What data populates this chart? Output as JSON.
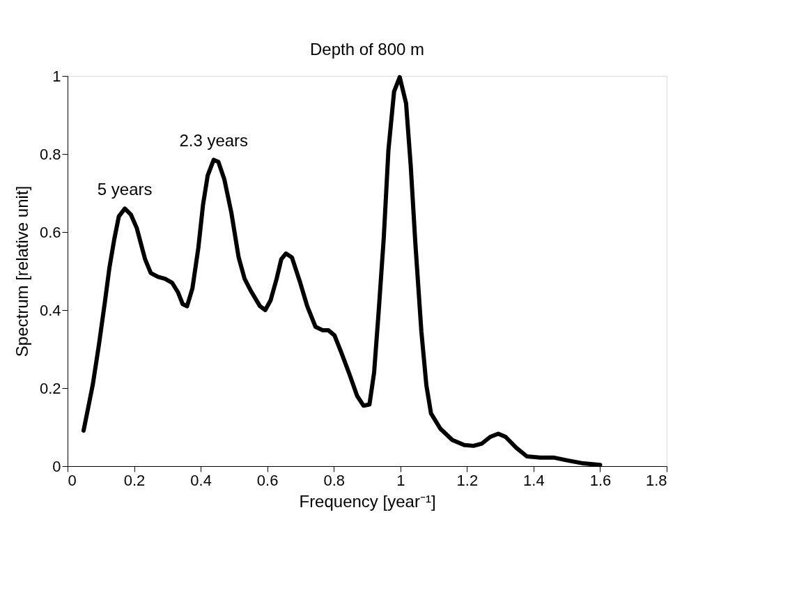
{
  "chart_data": {
    "type": "line",
    "title": "Depth of 800 m",
    "xlabel": "Frequency [year⁻¹]",
    "ylabel": "Spectrum [relative unit]",
    "xlim": [
      0,
      1.8
    ],
    "xticks": [
      0,
      0.2,
      0.4,
      0.6,
      0.8,
      1,
      1.2,
      1.4,
      1.6,
      1.8
    ],
    "ylim": [
      0,
      1
    ],
    "yticks": [
      0,
      0.2,
      0.4,
      0.6,
      0.8,
      1
    ],
    "grid": false,
    "marker": "none",
    "line_style": "solid",
    "annotations": [
      {
        "text": "5 years",
        "x": 0.172,
        "y": 0.66
      },
      {
        "text": "2.3 years",
        "x": 0.439,
        "y": 0.785
      }
    ],
    "series": [
      {
        "color": "#000000",
        "x": [
          0.048,
          0.062,
          0.076,
          0.094,
          0.112,
          0.126,
          0.14,
          0.154,
          0.172,
          0.19,
          0.208,
          0.233,
          0.25,
          0.272,
          0.293,
          0.314,
          0.332,
          0.346,
          0.359,
          0.375,
          0.393,
          0.407,
          0.421,
          0.439,
          0.453,
          0.471,
          0.492,
          0.514,
          0.532,
          0.55,
          0.578,
          0.594,
          0.61,
          0.628,
          0.642,
          0.656,
          0.674,
          0.699,
          0.72,
          0.745,
          0.767,
          0.784,
          0.802,
          0.823,
          0.848,
          0.87,
          0.889,
          0.907,
          0.921,
          0.935,
          0.95,
          0.964,
          0.981,
          0.998,
          1.017,
          1.031,
          1.045,
          1.063,
          1.078,
          1.092,
          1.12,
          1.156,
          1.192,
          1.22,
          1.245,
          1.27,
          1.294,
          1.316,
          1.348,
          1.38,
          1.42,
          1.46,
          1.5,
          1.55,
          1.6
        ],
        "values": [
          0.091,
          0.15,
          0.21,
          0.31,
          0.42,
          0.51,
          0.58,
          0.64,
          0.66,
          0.645,
          0.61,
          0.53,
          0.495,
          0.485,
          0.48,
          0.47,
          0.445,
          0.415,
          0.41,
          0.455,
          0.56,
          0.67,
          0.745,
          0.785,
          0.78,
          0.735,
          0.65,
          0.535,
          0.48,
          0.45,
          0.41,
          0.4,
          0.425,
          0.48,
          0.53,
          0.545,
          0.535,
          0.47,
          0.41,
          0.357,
          0.348,
          0.348,
          0.335,
          0.29,
          0.233,
          0.18,
          0.155,
          0.158,
          0.24,
          0.4,
          0.585,
          0.81,
          0.96,
          0.997,
          0.93,
          0.77,
          0.57,
          0.345,
          0.207,
          0.135,
          0.096,
          0.067,
          0.054,
          0.052,
          0.058,
          0.075,
          0.083,
          0.075,
          0.047,
          0.025,
          0.022,
          0.022,
          0.015,
          0.007,
          0.003
        ]
      }
    ]
  }
}
